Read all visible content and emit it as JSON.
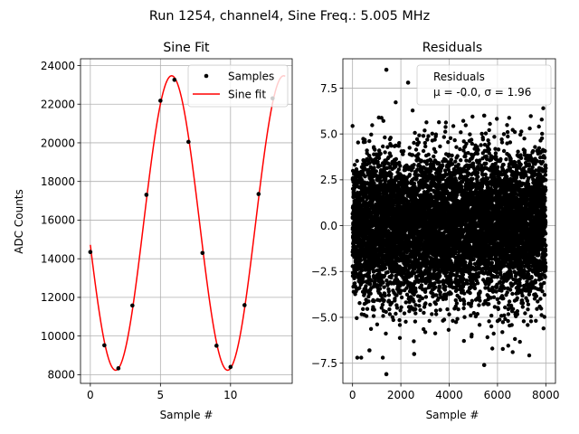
{
  "suptitle": "Run 1254, channel4, Sine Freq.: 5.005 MHz",
  "chart_data": [
    {
      "type": "line",
      "title": "Sine Fit",
      "xlabel": "Sample #",
      "ylabel": "ADC Counts",
      "xlim": [
        -0.7,
        14.4
      ],
      "ylim": [
        7550,
        24350
      ],
      "xticks": [
        0,
        5,
        10
      ],
      "yticks": [
        8000,
        10000,
        12000,
        14000,
        16000,
        18000,
        20000,
        22000,
        24000
      ],
      "grid": true,
      "legend": {
        "placement": "top-right",
        "entries": [
          "Samples",
          "Sine fit"
        ]
      },
      "series": [
        {
          "name": "Samples",
          "kind": "scatter",
          "color": "#000000",
          "x": [
            0,
            1,
            2,
            3,
            4,
            5,
            6,
            7,
            8,
            9,
            10,
            11,
            12,
            13
          ],
          "y": [
            14350,
            9520,
            8330,
            11580,
            17310,
            22180,
            23260,
            20050,
            14300,
            9500,
            8400,
            11600,
            17350,
            22300
          ]
        },
        {
          "name": "Sine fit",
          "kind": "line",
          "color": "#ff0000",
          "model": {
            "offset": 15850,
            "amplitude": 7620,
            "samples_per_cycle": 7.986,
            "x_at_peak": 5.8,
            "x_range": [
              0,
              13.9
            ]
          }
        }
      ]
    },
    {
      "type": "scatter",
      "title": "Residuals",
      "xlabel": "Sample #",
      "ylabel": "",
      "xlim": [
        -400,
        8400
      ],
      "ylim": [
        -8.6,
        9.1
      ],
      "xticks": [
        0,
        2000,
        4000,
        6000,
        8000
      ],
      "yticks": [
        -7.5,
        -5.0,
        -2.5,
        0.0,
        2.5,
        5.0,
        7.5
      ],
      "ytick_labels": [
        "−7.5",
        "−5.0",
        "−2.5",
        "0.0",
        "2.5",
        "5.0",
        "7.5"
      ],
      "grid": true,
      "legend": {
        "placement": "top-right",
        "entries": [
          "Residuals",
          "μ = -0.0, σ = 1.96"
        ]
      },
      "series": [
        {
          "name": "Residuals",
          "color": "#000000",
          "n_points": 8000,
          "x_range": [
            0,
            7999
          ],
          "mean": 0.0,
          "std": 1.96,
          "notable_points": [
            {
              "x": 1400,
              "y": 8.5
            },
            {
              "x": 2300,
              "y": 7.8
            },
            {
              "x": 1400,
              "y": -8.1
            },
            {
              "x": 700,
              "y": -6.8
            },
            {
              "x": 2550,
              "y": -7.0
            },
            {
              "x": 5450,
              "y": -7.6
            },
            {
              "x": 5450,
              "y": 6.0
            }
          ]
        }
      ]
    }
  ]
}
